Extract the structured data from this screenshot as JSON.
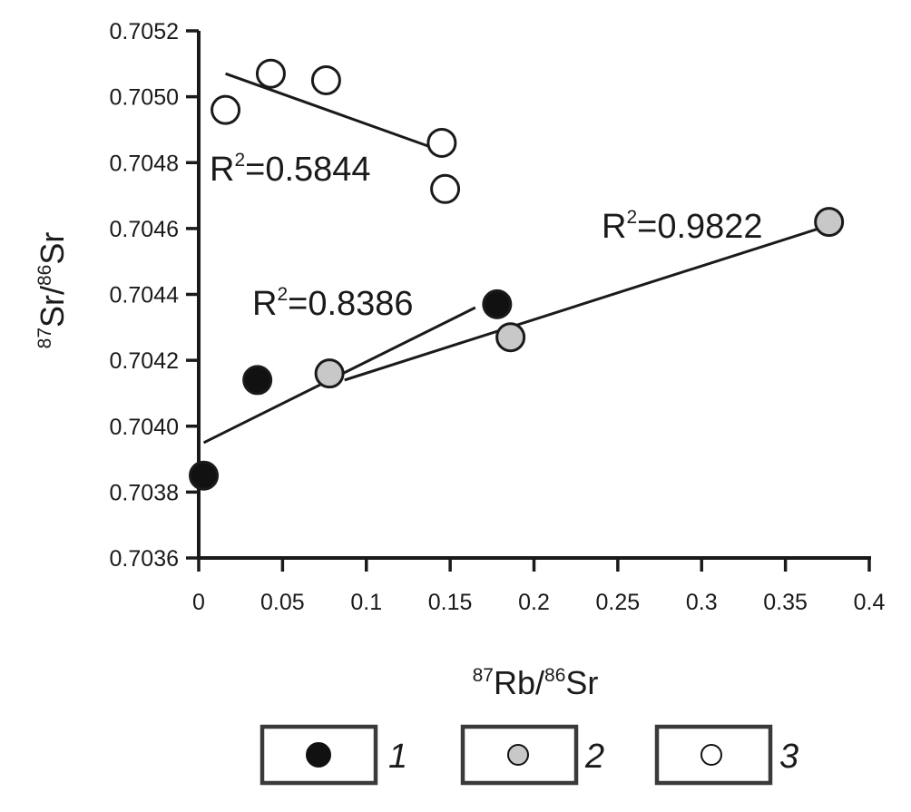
{
  "chart_data": {
    "type": "scatter",
    "xlabel": {
      "sup1": "87",
      "main1": "Rb/",
      "sup2": "86",
      "main2": "Sr"
    },
    "ylabel": {
      "sup1": "87",
      "main1": "Sr/",
      "sup2": "86",
      "main2": "Sr"
    },
    "xlim": [
      0,
      0.4
    ],
    "ylim": [
      0.7036,
      0.7052
    ],
    "x_ticks": [
      0,
      0.05,
      0.1,
      0.15,
      0.2,
      0.25,
      0.3,
      0.35,
      0.4
    ],
    "x_tick_labels": [
      "0",
      "0.05",
      "0.1",
      "0.15",
      "0.2",
      "0.25",
      "0.3",
      "0.35",
      "0.4"
    ],
    "y_ticks": [
      0.7036,
      0.7038,
      0.704,
      0.7042,
      0.7044,
      0.7046,
      0.7048,
      0.705,
      0.7052
    ],
    "y_tick_labels": [
      "0.7036",
      "0.7038",
      "0.7040",
      "0.7042",
      "0.7044",
      "0.7046",
      "0.7048",
      "0.7050",
      "0.7052"
    ],
    "grid": false,
    "series": [
      {
        "name": "1",
        "fill": "#111111",
        "points": [
          {
            "x": 0.003,
            "y": 0.70385
          },
          {
            "x": 0.035,
            "y": 0.70414
          },
          {
            "x": 0.178,
            "y": 0.70437
          }
        ],
        "trendline": {
          "x": [
            0.003,
            0.165
          ],
          "y": [
            0.70395,
            0.70436
          ]
        },
        "r2": {
          "prefix": "R",
          "sup": "2",
          "value": "=0.8386"
        }
      },
      {
        "name": "2",
        "fill": "#c8c8c8",
        "points": [
          {
            "x": 0.078,
            "y": 0.70416
          },
          {
            "x": 0.186,
            "y": 0.70427
          },
          {
            "x": 0.376,
            "y": 0.70462
          }
        ],
        "trendline": {
          "x": [
            0.087,
            0.37
          ],
          "y": [
            0.70414,
            0.7046
          ]
        },
        "r2": {
          "prefix": "R",
          "sup": "2",
          "value": "=0.9822"
        }
      },
      {
        "name": "3",
        "fill": "#ffffff",
        "points": [
          {
            "x": 0.016,
            "y": 0.70496
          },
          {
            "x": 0.043,
            "y": 0.70507
          },
          {
            "x": 0.076,
            "y": 0.70505
          },
          {
            "x": 0.145,
            "y": 0.70486
          },
          {
            "x": 0.147,
            "y": 0.70472
          }
        ],
        "trendline": {
          "x": [
            0.016,
            0.148
          ],
          "y": [
            0.70507,
            0.70483
          ]
        },
        "r2": {
          "prefix": "R",
          "sup": "2",
          "value": "=0.5844"
        }
      }
    ],
    "legend": {
      "position": "bottom",
      "items": [
        {
          "label": "1",
          "fill": "#111111"
        },
        {
          "label": "2",
          "fill": "#c8c8c8"
        },
        {
          "label": "3",
          "fill": "#ffffff"
        }
      ]
    }
  }
}
